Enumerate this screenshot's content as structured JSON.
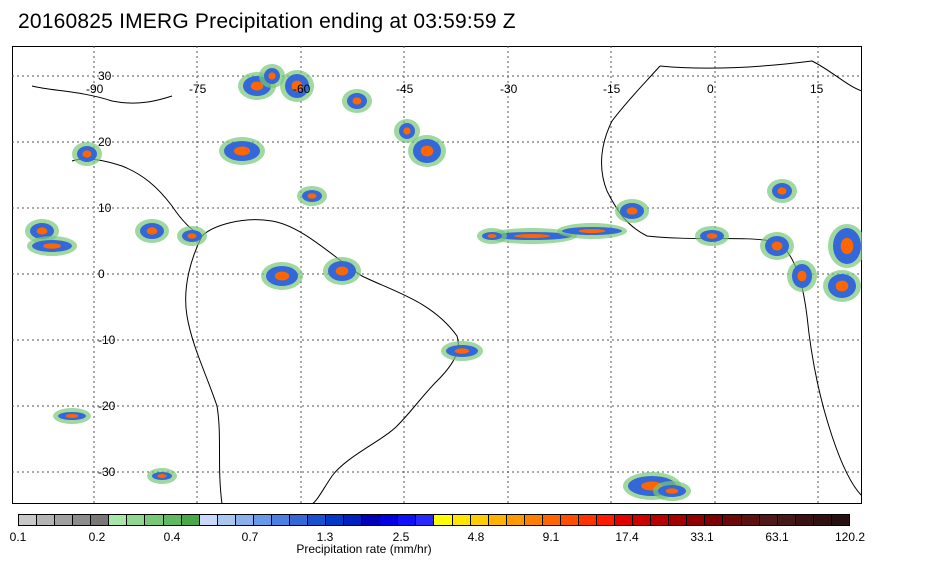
{
  "title": "20160825 IMERG Precipitation ending at 03:59:59 Z",
  "lon_ticks": [
    "-90",
    "-75",
    "-60",
    "-45",
    "-30",
    "-15",
    "0",
    "15"
  ],
  "lat_ticks": [
    "30",
    "20",
    "10",
    "0",
    "-10",
    "-20",
    "-30"
  ],
  "colorbar": {
    "colors": [
      "#c8c8c8",
      "#b4b4b4",
      "#a0a0a0",
      "#8c8c8c",
      "#787878",
      "#a8e6a8",
      "#90d890",
      "#78c878",
      "#60b860",
      "#48a848",
      "#c8d8f8",
      "#a8c8f0",
      "#88b0ec",
      "#6898e8",
      "#4c80e0",
      "#3468d8",
      "#1850d0",
      "#0038c8",
      "#0020c0",
      "#0000b8",
      "#0000e0",
      "#1010f8",
      "#2828ff",
      "#ffff00",
      "#ffe600",
      "#ffcc00",
      "#ffb300",
      "#ff9900",
      "#ff8000",
      "#ff6600",
      "#ff4d00",
      "#ff3300",
      "#ff1a00",
      "#e00000",
      "#cc0000",
      "#b80000",
      "#a40000",
      "#900000",
      "#7c0000",
      "#6c0808",
      "#5c1010",
      "#501818",
      "#461818",
      "#3c1010",
      "#321010",
      "#281010"
    ],
    "labels": [
      "0.1",
      "0.2",
      "0.4",
      "0.7",
      "1.3",
      "2.5",
      "4.8",
      "9.1",
      "17.4",
      "33.1",
      "63.1",
      "120.2"
    ],
    "unit_label": "Precipitation rate (mm/hr)"
  }
}
